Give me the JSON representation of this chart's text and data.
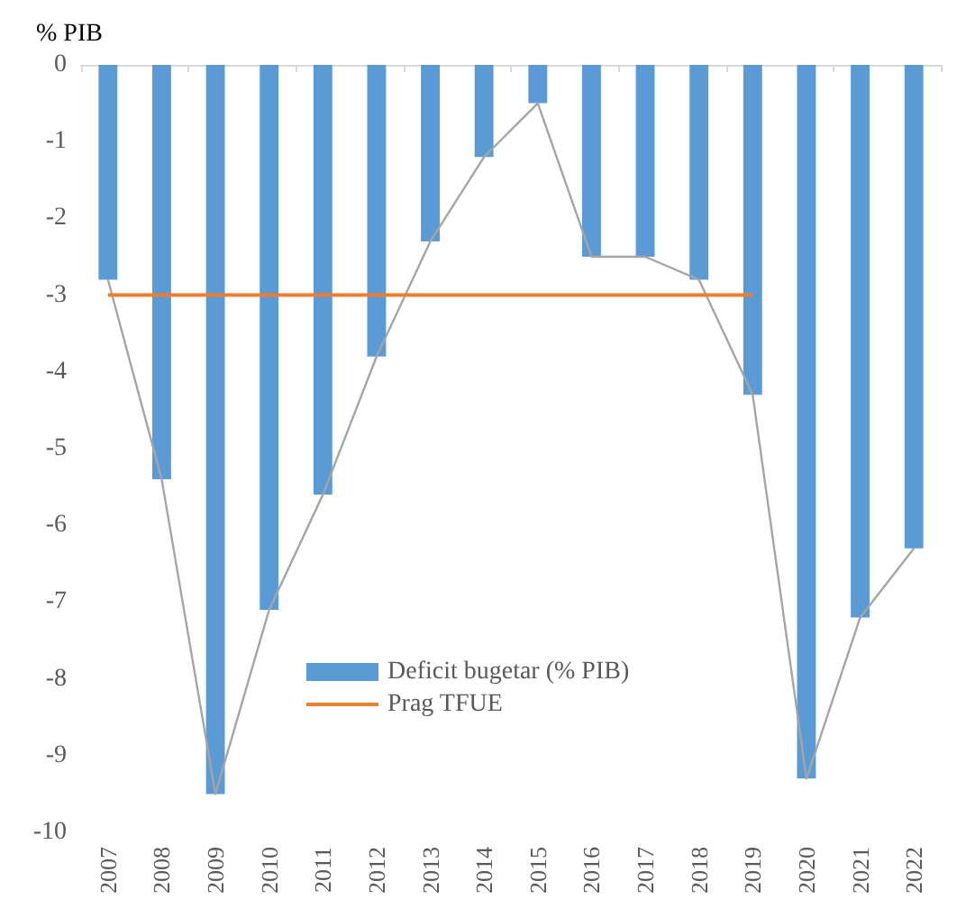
{
  "chart_data": {
    "type": "bar",
    "ylabel": "% PIB",
    "categories": [
      "2007",
      "2008",
      "2009",
      "2010",
      "2011",
      "2012",
      "2013",
      "2014",
      "2015",
      "2016",
      "2017",
      "2018",
      "2019",
      "2020",
      "2021",
      "2022"
    ],
    "series": [
      {
        "name": "Deficit bugetar (% PIB)",
        "color": "#5b9bd5",
        "values": [
          -2.8,
          -5.4,
          -9.5,
          -7.1,
          -5.6,
          -3.8,
          -2.3,
          -1.2,
          -0.5,
          -2.5,
          -2.5,
          -2.8,
          -4.3,
          -9.3,
          -7.2,
          -6.3
        ]
      },
      {
        "type": "line",
        "color": "#a5a5a5",
        "values": [
          -2.8,
          -5.4,
          -9.5,
          -7.1,
          -5.6,
          -3.8,
          -2.3,
          -1.2,
          -0.5,
          -2.5,
          -2.5,
          -2.8,
          -4.3,
          -9.3,
          -7.2,
          -6.3
        ]
      },
      {
        "name": "Prag TFUE",
        "type": "line",
        "color": "#ed7d31",
        "values": [
          -3,
          -3,
          -3,
          -3,
          -3,
          -3,
          -3,
          -3,
          -3,
          -3,
          -3,
          -3,
          -3,
          null,
          null,
          null
        ]
      }
    ],
    "ylim": [
      -10,
      0
    ],
    "yticks": [
      -10,
      -9,
      -8,
      -7,
      -6,
      -5,
      -4,
      -3,
      -2,
      -1,
      0
    ],
    "grid": false,
    "legend": "bottom"
  }
}
